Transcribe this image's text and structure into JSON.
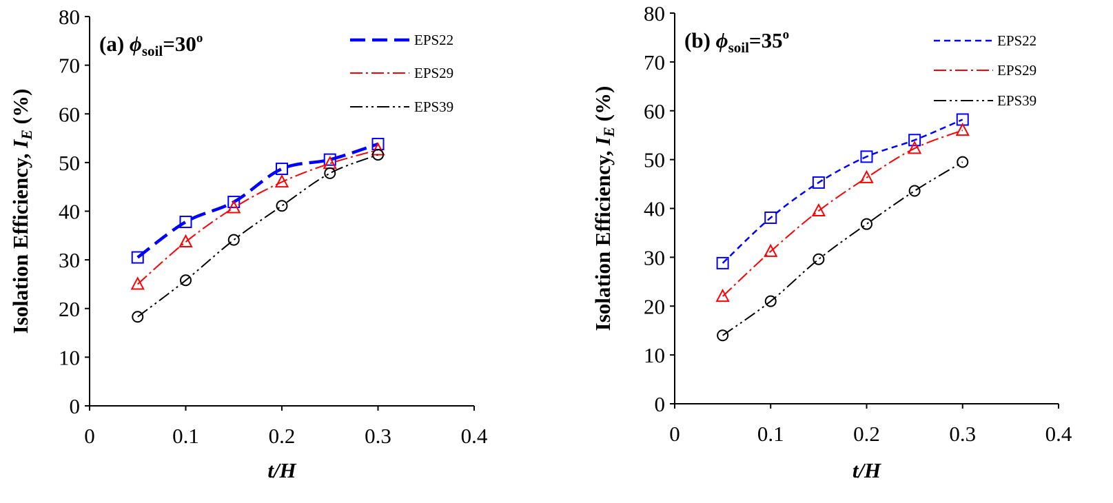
{
  "chart_data": [
    {
      "type": "line",
      "panel_label": "(a)",
      "phi_symbol": "ϕ",
      "phi_subscript": "soil",
      "phi_value": "=30",
      "phi_unit": "o",
      "xlabel": "t/H",
      "ylabel_prefix": "Isolation Efficiency, ",
      "ylabel_var": "I",
      "ylabel_sub": "E",
      "ylabel_suffix": " (%)",
      "xlim": [
        0,
        0.4
      ],
      "ylim": [
        0,
        80
      ],
      "xticks": [
        0,
        0.1,
        0.2,
        0.3,
        0.4
      ],
      "xtick_labels": [
        "0",
        "0.1",
        "0.2",
        "0.3",
        "0.4"
      ],
      "yticks": [
        0,
        10,
        20,
        30,
        40,
        50,
        60,
        70,
        80
      ],
      "ytick_labels": [
        "0",
        "10",
        "20",
        "30",
        "40",
        "50",
        "60",
        "70",
        "80"
      ],
      "grid": false,
      "legend_position": "top-right",
      "x": [
        0.05,
        0.1,
        0.15,
        0.2,
        0.25,
        0.3
      ],
      "series": [
        {
          "name": "EPS22",
          "color": "#0000ff",
          "marker": "square",
          "line_style": "dashed-bold",
          "values": [
            30.5,
            37.8,
            41.9,
            48.7,
            50.6,
            53.8
          ]
        },
        {
          "name": "EPS29",
          "color": "#ff0000",
          "marker": "triangle",
          "line_style": "dash-dot",
          "values": [
            25.0,
            33.7,
            40.7,
            46.0,
            49.8,
            52.6
          ]
        },
        {
          "name": "EPS39",
          "color": "#000000",
          "marker": "circle",
          "line_style": "dash-dot-dot",
          "values": [
            18.3,
            25.8,
            34.1,
            41.1,
            47.8,
            51.6
          ]
        }
      ]
    },
    {
      "type": "line",
      "panel_label": "(b)",
      "phi_symbol": "ϕ",
      "phi_subscript": "soil",
      "phi_value": "=35",
      "phi_unit": "o",
      "xlabel": "t/H",
      "ylabel_prefix": "Isolation Efficiency, ",
      "ylabel_var": "I",
      "ylabel_sub": "E",
      "ylabel_suffix": " (%)",
      "xlim": [
        0,
        0.4
      ],
      "ylim": [
        0,
        80
      ],
      "xticks": [
        0,
        0.1,
        0.2,
        0.3,
        0.4
      ],
      "xtick_labels": [
        "0",
        "0.1",
        "0.2",
        "0.3",
        "0.4"
      ],
      "yticks": [
        0,
        10,
        20,
        30,
        40,
        50,
        60,
        70,
        80
      ],
      "ytick_labels": [
        "0",
        "10",
        "20",
        "30",
        "40",
        "50",
        "60",
        "70",
        "80"
      ],
      "grid": false,
      "legend_position": "top-right",
      "x": [
        0.05,
        0.1,
        0.15,
        0.2,
        0.25,
        0.3
      ],
      "series": [
        {
          "name": "EPS22",
          "color": "#0000ff",
          "marker": "square",
          "line_style": "dashed",
          "values": [
            28.8,
            38.1,
            45.3,
            50.6,
            54.0,
            58.2
          ]
        },
        {
          "name": "EPS29",
          "color": "#ff0000",
          "marker": "triangle",
          "line_style": "dash-dot",
          "values": [
            22.0,
            31.2,
            39.5,
            46.3,
            52.3,
            56.0
          ]
        },
        {
          "name": "EPS39",
          "color": "#000000",
          "marker": "circle",
          "line_style": "dash-dot-dot",
          "values": [
            14.0,
            21.0,
            29.6,
            36.8,
            43.6,
            49.5
          ]
        }
      ]
    }
  ]
}
